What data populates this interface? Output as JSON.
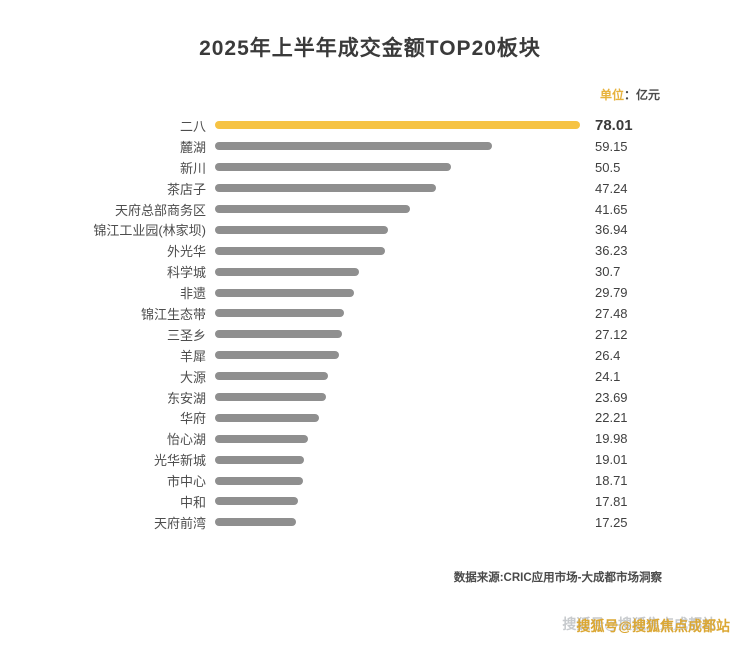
{
  "title": "2025年上半年成交金额TOP20板块",
  "unit": {
    "prefix": "单位",
    "suffix": "：亿元"
  },
  "chart_data": {
    "type": "bar",
    "orientation": "horizontal",
    "title": "2025年上半年成交金额TOP20板块",
    "unit_label": "单位：亿元",
    "categories": [
      "二八",
      "麓湖",
      "新川",
      "茶店子",
      "天府总部商务区",
      "锦江工业园(林家坝)",
      "外光华",
      "科学城",
      "非遗",
      "锦江生态带",
      "三圣乡",
      "羊犀",
      "大源",
      "东安湖",
      "华府",
      "怡心湖",
      "光华新城",
      "市中心",
      "中和",
      "天府前湾"
    ],
    "values": [
      78.01,
      59.15,
      50.5,
      47.24,
      41.65,
      36.94,
      36.23,
      30.7,
      29.79,
      27.48,
      27.12,
      26.4,
      24.1,
      23.69,
      22.21,
      19.98,
      19.01,
      18.71,
      17.81,
      17.25
    ],
    "xlim": [
      0,
      78.01
    ],
    "grid": false,
    "legend": false,
    "highlight_index": 0,
    "colors": {
      "highlight_bar": "#F6C344",
      "bar": "#8F8F8F"
    }
  },
  "footer": {
    "source": "数据来源:CRIC应用市场-大成都市场洞察"
  },
  "watermark": {
    "front": "搜狐号@搜狐焦点成都站",
    "back": "搜狐号@搜狐焦点成都站"
  }
}
